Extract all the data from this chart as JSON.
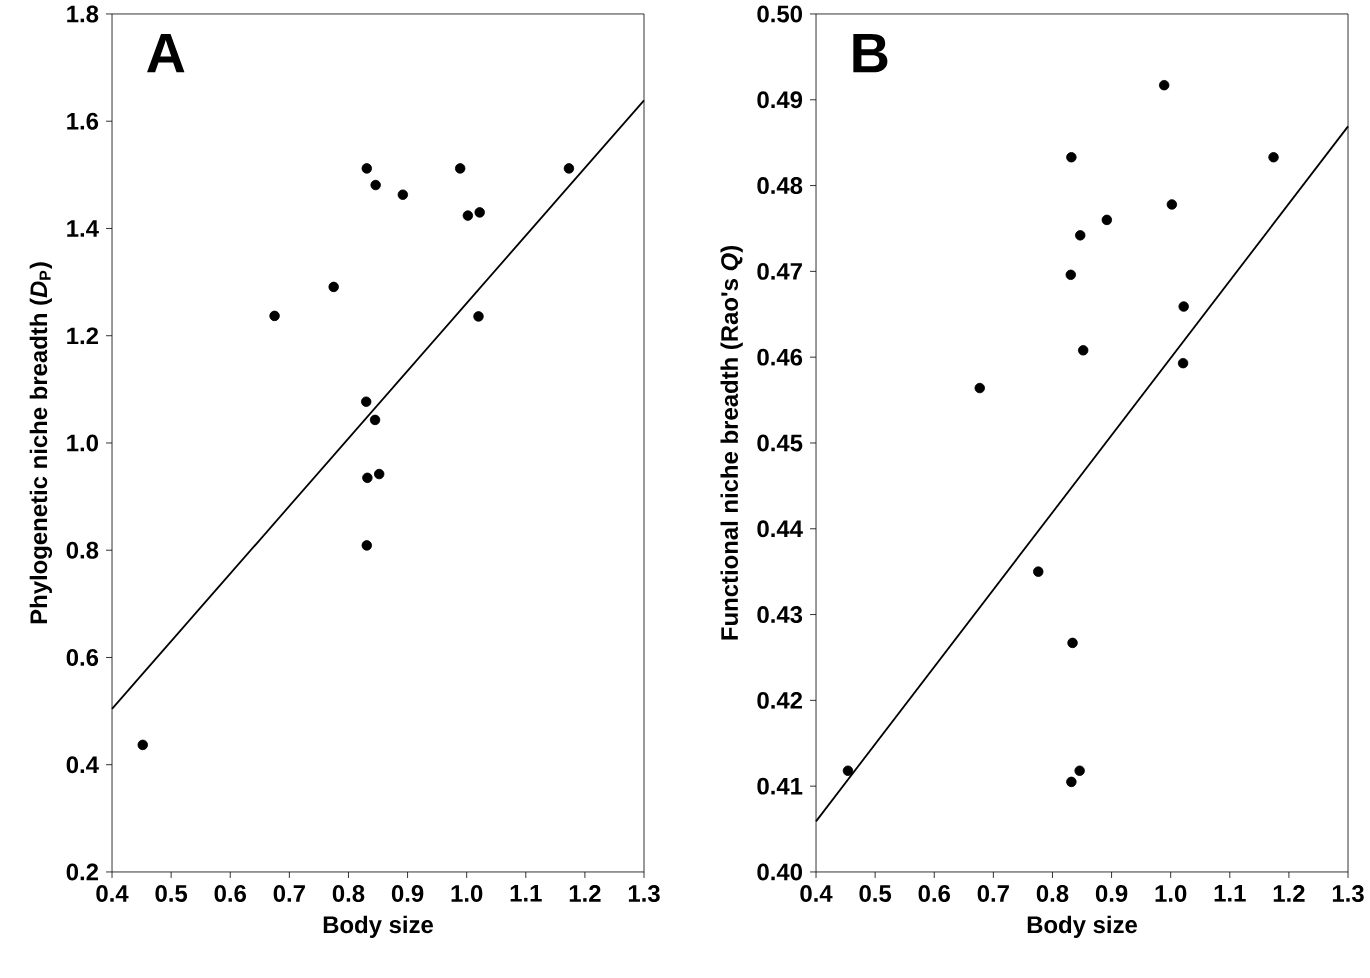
{
  "chart_data": [
    {
      "type": "scatter",
      "xlabel": "Body size",
      "ylabel": "Phylogenetic niche breadth (*D*$_{P}$)",
      "annotations": [
        "A"
      ],
      "xlim": [
        0.4,
        1.3
      ],
      "xticks": [
        0.4,
        0.5,
        0.6,
        0.7,
        0.8,
        0.9,
        {
          "value": 1.0,
          "label": "1.0"
        },
        1.1,
        1.2,
        1.3
      ],
      "ylim": [
        0.2,
        1.8
      ],
      "yticks": [
        0.2,
        0.4,
        0.6,
        0.8,
        {
          "value": 1.0,
          "label": "1.0"
        },
        1.2,
        1.4,
        1.6,
        1.8
      ],
      "series": [
        {
          "marker": "circle",
          "color": "#000000",
          "x": [
            0.452,
            0.675,
            0.775,
            0.831,
            0.846,
            0.892,
            0.989,
            1.002,
            1.022,
            1.173,
            1.02,
            0.83,
            0.845,
            0.832,
            0.852,
            0.831
          ],
          "values": [
            0.437,
            1.237,
            1.291,
            1.512,
            1.481,
            1.463,
            1.512,
            1.424,
            1.43,
            1.512,
            1.236,
            1.077,
            1.043,
            0.935,
            0.942,
            0.809
          ]
        },
        {
          "type": "line",
          "marker": "none",
          "color": "#000000",
          "x": [
            0.4,
            1.3
          ],
          "values": [
            0.504,
            1.639
          ]
        }
      ]
    },
    {
      "type": "scatter",
      "xlabel": "Body size",
      "ylabel": "Functional niche breadth (Rao's *Q*)",
      "annotations": [
        "B"
      ],
      "xlim": [
        0.4,
        1.3
      ],
      "xticks": [
        0.4,
        0.5,
        0.6,
        0.7,
        0.8,
        0.9,
        {
          "value": 1.0,
          "label": "1.0"
        },
        1.1,
        1.2,
        1.3
      ],
      "ylim": [
        0.4,
        0.5
      ],
      "yticks": [
        {
          "value": 0.4,
          "label": "0.40"
        },
        0.41,
        0.42,
        0.43,
        0.44,
        0.45,
        0.46,
        0.47,
        0.48,
        0.49,
        {
          "value": 0.5,
          "label": "0.50"
        }
      ],
      "series": [
        {
          "marker": "circle",
          "color": "#000000",
          "x": [
            0.454,
            0.677,
            0.776,
            0.832,
            0.831,
            0.847,
            0.852,
            0.892,
            0.989,
            1.002,
            1.022,
            1.021,
            1.174,
            0.834,
            0.832,
            0.846
          ],
          "values": [
            0.4118,
            0.4564,
            0.435,
            0.4833,
            0.4696,
            0.4742,
            0.4608,
            0.476,
            0.4917,
            0.4778,
            0.4659,
            0.4593,
            0.4833,
            0.4267,
            0.4105,
            0.4118
          ]
        },
        {
          "type": "line",
          "marker": "none",
          "color": "#000000",
          "x": [
            0.4,
            1.3
          ],
          "values": [
            0.4059,
            0.4869
          ]
        }
      ]
    }
  ]
}
